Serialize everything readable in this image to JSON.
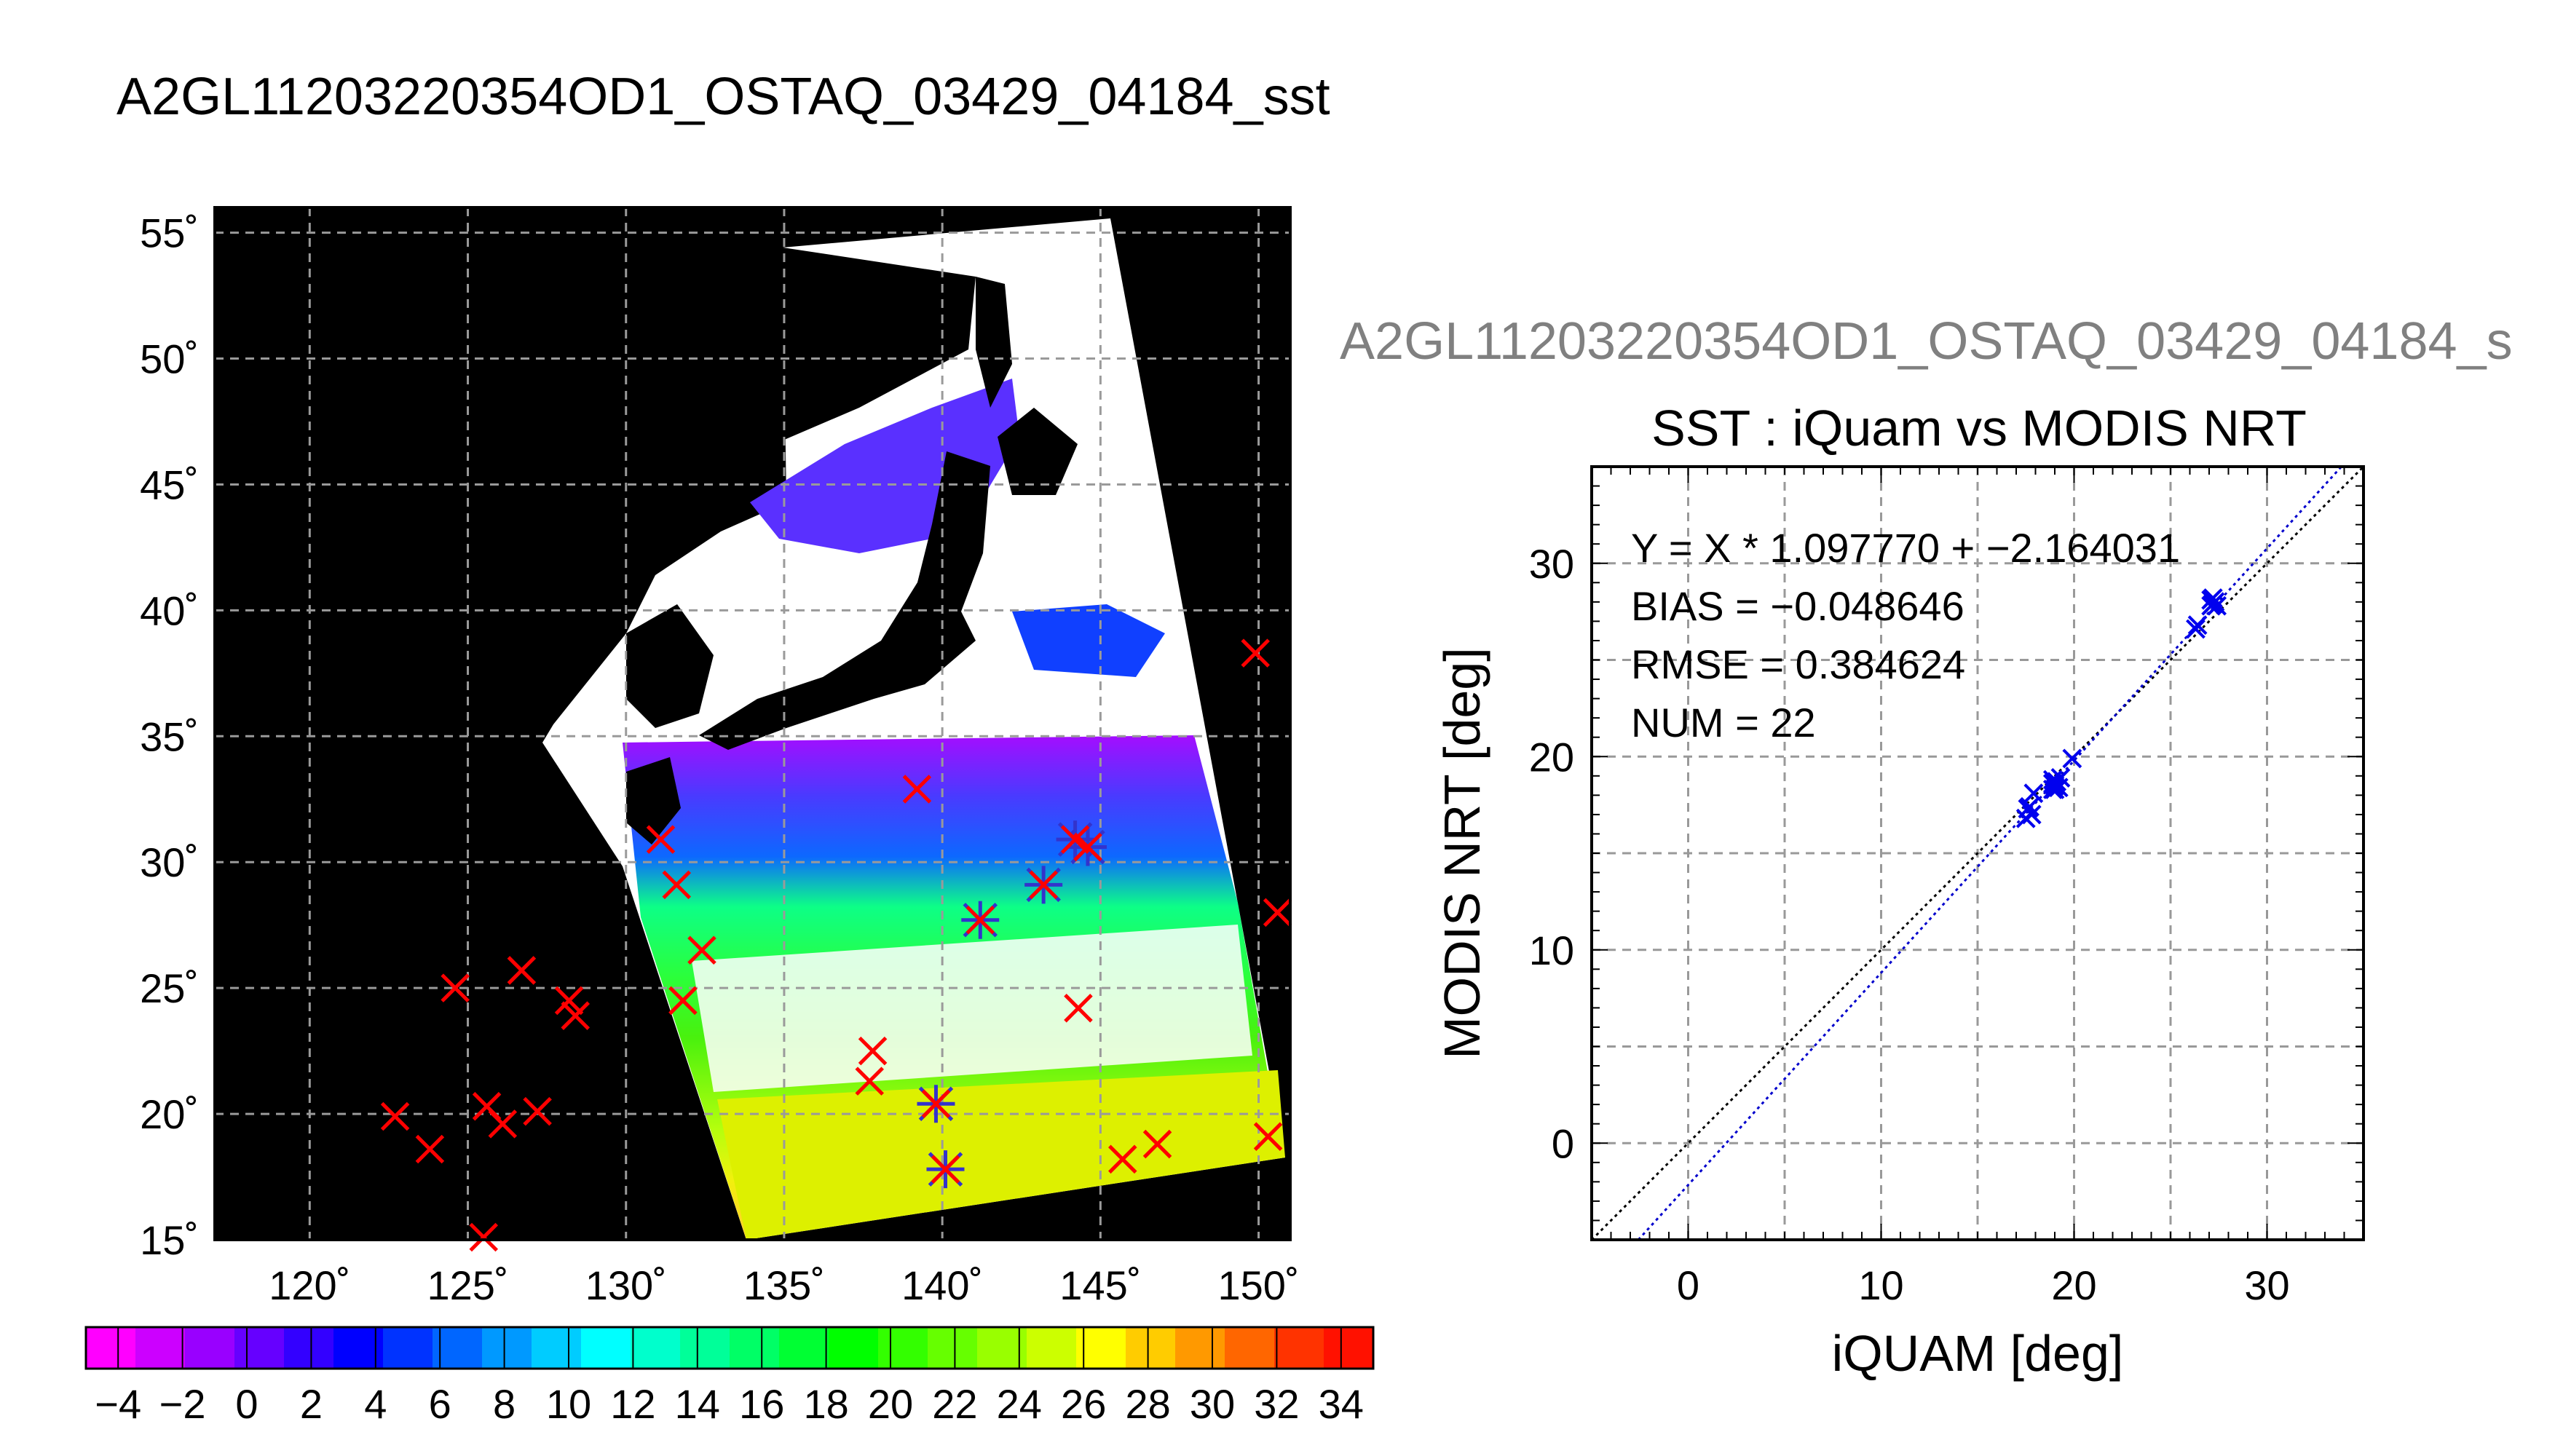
{
  "title": "A2GL11203220354OD1_OSTAQ_03429_04184_sst",
  "secondary_title": "A2GL11203220354OD1_OSTAQ_03429_04184_s",
  "colors": {
    "match_marker": "#ff0000",
    "satellite_marker": "#3333cc",
    "scatter_marker": "#0000ee",
    "regression_line": "#0000cc",
    "identity_line": "#000000",
    "map_background": "#000000"
  },
  "chart_data": [
    {
      "type": "map",
      "lon_ticks": [
        120,
        125,
        130,
        135,
        140,
        145,
        150
      ],
      "lat_ticks": [
        15,
        20,
        25,
        30,
        35,
        40,
        45,
        50,
        55
      ],
      "lon_tick_labels": [
        "120˚",
        "125˚",
        "130˚",
        "135˚",
        "140˚",
        "145˚",
        "150˚"
      ],
      "lat_tick_labels": [
        "15˚",
        "20˚",
        "25˚",
        "30˚",
        "35˚",
        "40˚",
        "45˚",
        "50˚",
        "55˚"
      ],
      "xlim": [
        117,
        151
      ],
      "ylim": [
        15,
        56
      ],
      "grid": true,
      "iquam_points": [
        [
          149.9,
          38.3
        ],
        [
          139.2,
          32.9
        ],
        [
          131.1,
          30.9
        ],
        [
          131.6,
          29.1
        ],
        [
          144.2,
          30.9
        ],
        [
          144.6,
          30.6
        ],
        [
          143.2,
          29.1
        ],
        [
          141.2,
          27.7
        ],
        [
          132.4,
          26.5
        ],
        [
          131.8,
          24.5
        ],
        [
          124.6,
          25.0
        ],
        [
          126.7,
          25.7
        ],
        [
          128.2,
          24.5
        ],
        [
          128.4,
          23.9
        ],
        [
          144.3,
          24.2
        ],
        [
          137.8,
          22.5
        ],
        [
          137.7,
          21.3
        ],
        [
          139.8,
          20.4
        ],
        [
          122.7,
          19.9
        ],
        [
          123.8,
          18.6
        ],
        [
          125.6,
          20.3
        ],
        [
          126.1,
          19.6
        ],
        [
          127.2,
          20.1
        ],
        [
          140.1,
          17.8
        ],
        [
          145.7,
          18.2
        ],
        [
          146.8,
          18.8
        ],
        [
          150.3,
          19.1
        ],
        [
          150.6,
          28.0
        ],
        [
          125.5,
          15.1
        ]
      ],
      "matched_points": [
        [
          144.2,
          30.9
        ],
        [
          144.6,
          30.6
        ],
        [
          143.2,
          29.1
        ],
        [
          141.2,
          27.7
        ],
        [
          139.8,
          20.4
        ],
        [
          140.1,
          17.8
        ]
      ]
    },
    {
      "type": "colorbar",
      "range": [
        -5,
        35
      ],
      "tick_labels": [
        "−4",
        "−2",
        "0",
        "2",
        "4",
        "6",
        "8",
        "10",
        "12",
        "14",
        "16",
        "18",
        "20",
        "22",
        "24",
        "26",
        "28",
        "30",
        "32",
        "34"
      ],
      "colors": [
        "#ff00ff",
        "#cc00ff",
        "#9900ff",
        "#6600ff",
        "#3300ff",
        "#0000ff",
        "#0033ff",
        "#0066ff",
        "#0099ff",
        "#00ccff",
        "#00ffff",
        "#00ffcc",
        "#00ff99",
        "#00ff66",
        "#00ff33",
        "#00ff00",
        "#33ff00",
        "#66ff00",
        "#99ff00",
        "#ccff00",
        "#ffff00",
        "#ffcc00",
        "#ff9900",
        "#ff6600",
        "#ff3300",
        "#ff1100"
      ]
    },
    {
      "type": "scatter",
      "title": "SST : iQuam vs MODIS NRT",
      "xlabel": "iQUAM [deg]",
      "ylabel": "MODIS NRT [deg]",
      "xlim": [
        -5,
        35
      ],
      "ylim": [
        -5,
        35
      ],
      "x_ticks": [
        0,
        10,
        20,
        30
      ],
      "y_ticks": [
        0,
        10,
        20,
        30
      ],
      "grid": true,
      "stats": [
        "Y = X * 1.097770 + −2.164031",
        "BIAS = −0.048646",
        "RMSE = 0.384624",
        "NUM = 22"
      ],
      "regression": {
        "slope": 1.09777,
        "intercept": -2.164031
      },
      "x": [
        17.5,
        17.6,
        17.7,
        17.9,
        18.9,
        18.9,
        19.0,
        19.1,
        19.2,
        19.3,
        19.9,
        26.3,
        26.4,
        27.1,
        27.2,
        27.3,
        27.2,
        27.4,
        18.9,
        19.0,
        17.8,
        27.1
      ],
      "y": [
        16.8,
        17.3,
        17.4,
        18.1,
        18.3,
        18.8,
        18.5,
        18.7,
        18.4,
        18.9,
        19.9,
        26.6,
        26.8,
        27.8,
        28.2,
        28.0,
        27.9,
        27.8,
        18.6,
        18.3,
        17.0,
        28.1
      ]
    }
  ]
}
